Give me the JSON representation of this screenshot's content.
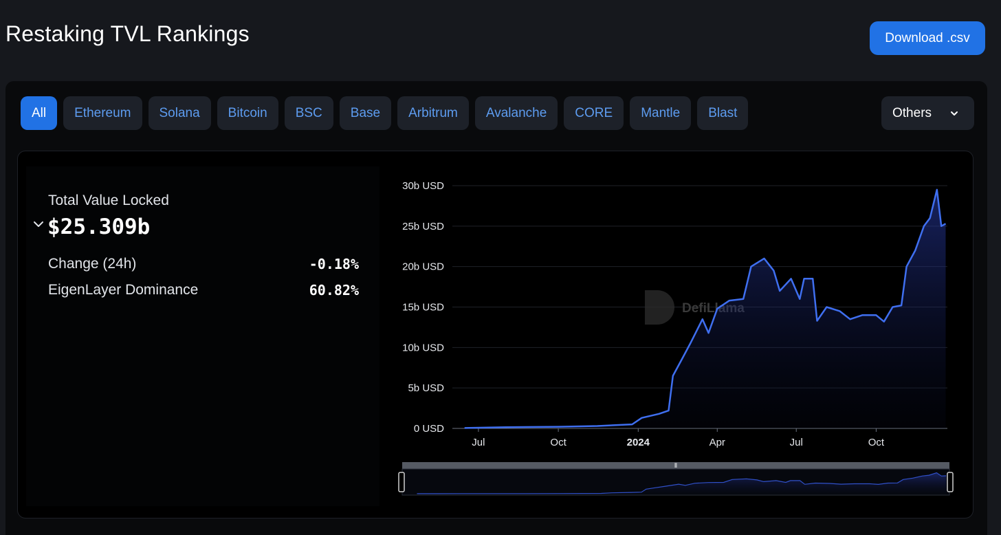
{
  "header": {
    "title": "Restaking TVL Rankings",
    "download_label": "Download .csv"
  },
  "tabs": [
    {
      "label": "All",
      "active": true
    },
    {
      "label": "Ethereum"
    },
    {
      "label": "Solana"
    },
    {
      "label": "Bitcoin"
    },
    {
      "label": "BSC"
    },
    {
      "label": "Base"
    },
    {
      "label": "Arbitrum"
    },
    {
      "label": "Avalanche"
    },
    {
      "label": "CORE"
    },
    {
      "label": "Mantle"
    },
    {
      "label": "Blast"
    }
  ],
  "others_dropdown": {
    "label": "Others"
  },
  "stats": {
    "tvl_label": "Total Value Locked",
    "tvl_value": "$25.309b",
    "change_label": "Change (24h)",
    "change_value": "-0.18%",
    "dominance_label": "EigenLayer Dominance",
    "dominance_value": "60.82%"
  },
  "watermark": "DefiLlama",
  "colors": {
    "accent": "#2172e5",
    "line": "#3f6ff0",
    "tab_text": "#5d9cf0"
  },
  "chart_data": {
    "type": "area",
    "y_unit": "USD",
    "ylim": [
      0,
      30
    ],
    "y_ticks": [
      "0 USD",
      "5b USD",
      "10b USD",
      "15b USD",
      "20b USD",
      "25b USD",
      "30b USD"
    ],
    "x_ticks": [
      "Jul",
      "Oct",
      "2024",
      "Apr",
      "Jul",
      "Oct"
    ],
    "grid": true,
    "series": [
      {
        "x": [
          "2023-06-15",
          "2023-08-01",
          "2023-10-01",
          "2023-11-15",
          "2023-12-25",
          "2024-01-05",
          "2024-01-25",
          "2024-02-05",
          "2024-02-10",
          "2024-02-20",
          "2024-03-01",
          "2024-03-15",
          "2024-03-22",
          "2024-04-01",
          "2024-04-15",
          "2024-05-01",
          "2024-05-10",
          "2024-05-25",
          "2024-06-05",
          "2024-06-12",
          "2024-06-25",
          "2024-07-05",
          "2024-07-10",
          "2024-07-20",
          "2024-07-25",
          "2024-08-05",
          "2024-08-20",
          "2024-09-01",
          "2024-09-15",
          "2024-10-01",
          "2024-10-10",
          "2024-10-20",
          "2024-10-30",
          "2024-11-05",
          "2024-11-15",
          "2024-11-25",
          "2024-12-02",
          "2024-12-10",
          "2024-12-15",
          "2024-12-20"
        ],
        "values": [
          0.05,
          0.15,
          0.2,
          0.3,
          0.5,
          1.3,
          1.8,
          2.2,
          6.5,
          8.5,
          10.5,
          13.5,
          11.8,
          14.8,
          15.8,
          16.0,
          20.0,
          21.0,
          19.5,
          17.0,
          18.5,
          16.0,
          18.5,
          18.5,
          13.3,
          15.0,
          14.5,
          13.5,
          14.0,
          14.0,
          13.2,
          15.0,
          15.2,
          20.0,
          22.0,
          25.0,
          26.0,
          29.5,
          25.0,
          25.3
        ]
      }
    ]
  }
}
